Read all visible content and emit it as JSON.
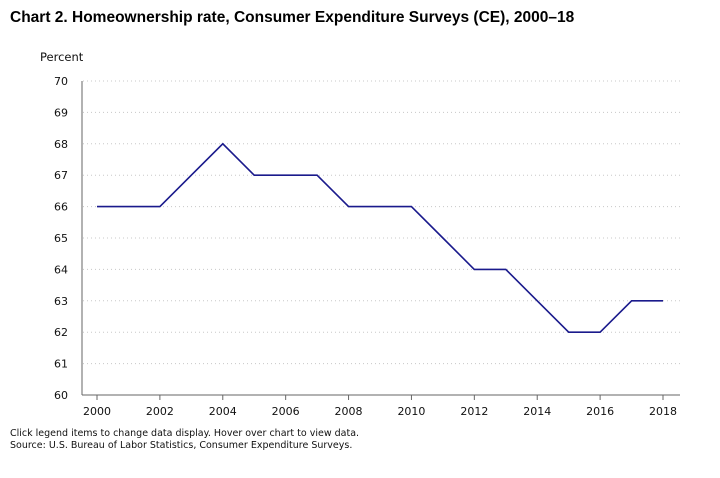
{
  "title": "Chart 2. Homeownership rate, Consumer Expenditure Surveys (CE), 2000–18",
  "footnotes": {
    "instructions": "Click legend items to change data display. Hover over chart to view data.",
    "source": "Source: U.S. Bureau of Labor Statistics, Consumer Expenditure Surveys."
  },
  "colors": {
    "line": "#1a1a8c",
    "grid": "#c8c8c8",
    "axis": "#666666"
  },
  "chart_data": {
    "type": "line",
    "title": "Chart 2. Homeownership rate, Consumer Expenditure Surveys (CE), 2000–18",
    "xlabel": "",
    "ylabel": "Percent",
    "xlim": [
      2000,
      2018
    ],
    "ylim": [
      60,
      70
    ],
    "x_ticks": [
      "2000",
      "2002",
      "2004",
      "2006",
      "2008",
      "2010",
      "2012",
      "2014",
      "2016",
      "2018"
    ],
    "y_ticks": [
      "60",
      "61",
      "62",
      "63",
      "64",
      "65",
      "66",
      "67",
      "68",
      "69",
      "70"
    ],
    "grid": "horizontal-dotted",
    "series": [
      {
        "name": "Homeownership rate",
        "x": [
          2000,
          2001,
          2002,
          2003,
          2004,
          2005,
          2006,
          2007,
          2008,
          2009,
          2010,
          2011,
          2012,
          2013,
          2014,
          2015,
          2016,
          2017,
          2018
        ],
        "values": [
          66,
          66,
          66,
          67,
          68,
          67,
          67,
          67,
          66,
          66,
          66,
          65,
          64,
          64,
          63,
          62,
          62,
          63,
          63
        ]
      }
    ]
  }
}
